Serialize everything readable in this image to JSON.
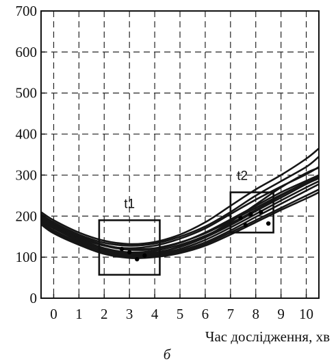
{
  "chart_data": {
    "type": "line",
    "xlabel": "Час дослідження, хв",
    "ylabel": "",
    "subfigure_label": "б",
    "xlim": [
      -0.5,
      10.5
    ],
    "ylim": [
      0,
      700
    ],
    "x_ticks": [
      0,
      1,
      2,
      3,
      4,
      5,
      6,
      7,
      8,
      9,
      10
    ],
    "y_ticks": [
      0,
      100,
      200,
      300,
      400,
      500,
      600,
      700
    ],
    "grid": "dashed",
    "regions": [
      {
        "label": "t1",
        "x_range": [
          1.8,
          4.2
        ],
        "y_range": [
          57,
          190
        ]
      },
      {
        "label": "t2",
        "x_range": [
          7.0,
          8.7
        ],
        "y_range": [
          160,
          258
        ]
      }
    ],
    "series": [
      {
        "x": [
          -0.5,
          0,
          1,
          2,
          3,
          4,
          5,
          6,
          7,
          8,
          9,
          10,
          10.5
        ],
        "y": [
          210,
          190,
          160,
          140,
          132,
          137,
          155,
          185,
          225,
          265,
          300,
          340,
          365
        ]
      },
      {
        "x": [
          -0.5,
          0,
          1,
          2,
          3,
          4,
          5,
          6,
          7,
          8,
          9,
          10,
          10.5
        ],
        "y": [
          205,
          185,
          155,
          135,
          128,
          133,
          150,
          175,
          210,
          250,
          285,
          320,
          345
        ]
      },
      {
        "x": [
          -0.5,
          0,
          1,
          2,
          3,
          4,
          5,
          6,
          7,
          8,
          9,
          10,
          10.5
        ],
        "y": [
          200,
          180,
          148,
          128,
          122,
          128,
          145,
          170,
          205,
          240,
          272,
          302,
          320
        ]
      },
      {
        "x": [
          -0.5,
          0,
          1,
          2,
          3,
          4,
          5,
          6,
          7,
          8,
          9,
          10,
          10.5
        ],
        "y": [
          195,
          178,
          150,
          128,
          118,
          120,
          135,
          160,
          192,
          225,
          258,
          286,
          300
        ]
      },
      {
        "x": [
          -0.5,
          0,
          1,
          2,
          3,
          4,
          5,
          6,
          7,
          8,
          9,
          10,
          10.5
        ],
        "y": [
          190,
          172,
          143,
          120,
          110,
          112,
          125,
          148,
          178,
          212,
          245,
          278,
          292
        ]
      },
      {
        "x": [
          -0.5,
          0,
          1,
          2,
          3,
          4,
          5,
          6,
          7,
          8,
          9,
          10,
          10.5
        ],
        "y": [
          188,
          170,
          140,
          118,
          106,
          108,
          120,
          142,
          172,
          205,
          238,
          270,
          285
        ]
      },
      {
        "x": [
          -0.5,
          0,
          1,
          2,
          3,
          4,
          5,
          6,
          7,
          8,
          9,
          10,
          10.5
        ],
        "y": [
          185,
          165,
          136,
          114,
          103,
          105,
          116,
          136,
          165,
          198,
          230,
          262,
          278
        ]
      },
      {
        "x": [
          -0.5,
          0,
          1,
          2,
          3,
          4,
          5,
          6,
          7,
          8,
          9,
          10,
          10.5
        ],
        "y": [
          182,
          162,
          134,
          112,
          100,
          102,
          112,
          132,
          160,
          190,
          220,
          250,
          265
        ]
      },
      {
        "x": [
          -0.5,
          0,
          1,
          2,
          3,
          4,
          5,
          6,
          7,
          8,
          9,
          10,
          10.5
        ],
        "y": [
          180,
          158,
          130,
          108,
          98,
          100,
          110,
          128,
          155,
          185,
          215,
          243,
          258
        ]
      },
      {
        "x": [
          -0.5,
          0,
          1,
          2,
          3,
          4,
          5,
          6,
          7,
          8,
          9,
          10,
          10.5
        ],
        "y": [
          200,
          182,
          152,
          130,
          120,
          122,
          136,
          158,
          188,
          220,
          252,
          282,
          296
        ]
      },
      {
        "x": [
          -0.5,
          0,
          1,
          2,
          3,
          4,
          5,
          6,
          7,
          8,
          9,
          10,
          10.5
        ],
        "y": [
          198,
          176,
          145,
          122,
          112,
          116,
          130,
          152,
          182,
          215,
          250,
          282,
          298
        ]
      },
      {
        "x": [
          -0.5,
          0,
          1,
          2,
          3,
          4,
          5,
          6,
          7,
          8,
          9,
          10,
          10.5
        ],
        "y": [
          192,
          172,
          142,
          120,
          108,
          110,
          126,
          150,
          186,
          228,
          270,
          305,
          318
        ]
      }
    ],
    "t1_markers": [
      {
        "x": 3.0,
        "y": 112
      },
      {
        "x": 3.3,
        "y": 95
      },
      {
        "x": 2.7,
        "y": 120
      },
      {
        "x": 3.6,
        "y": 104
      }
    ],
    "t2_markers": [
      {
        "x": 7.4,
        "y": 195
      },
      {
        "x": 7.8,
        "y": 205
      },
      {
        "x": 8.2,
        "y": 210
      },
      {
        "x": 8.5,
        "y": 182
      },
      {
        "x": 7.6,
        "y": 178
      }
    ]
  }
}
